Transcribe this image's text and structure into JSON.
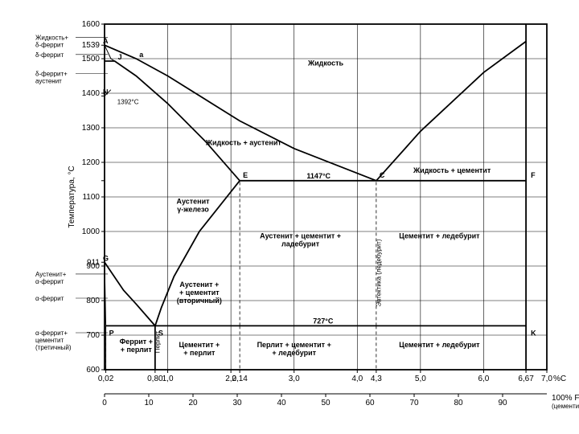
{
  "type": "phase-diagram",
  "background_color": "#ffffff",
  "stroke_color": "#000000",
  "grid_color": "#000000",
  "axis": {
    "x": {
      "label_upper_unit": "%С",
      "label_lower_unit": "100% Fe₃C\n(цементит)",
      "range_c": [
        0,
        7.0
      ],
      "range_fe3c": [
        0,
        100
      ],
      "ticks_c": [
        0.02,
        0.8,
        1.0,
        2.0,
        2.14,
        3.0,
        4.0,
        4.3,
        5.0,
        6.0,
        6.67,
        7.0
      ],
      "ticklabels_c": [
        "0,02",
        "0,80",
        "1,0",
        "2,0",
        "2,14",
        "3,0",
        "4,0",
        "4,3",
        "5,0",
        "6,0",
        "6,67",
        "7,0"
      ],
      "ticks_fe3c": [
        0,
        10,
        20,
        30,
        40,
        50,
        60,
        70,
        80,
        90
      ],
      "label_fontsize": 10
    },
    "y": {
      "label": "Температура, °С",
      "range": [
        600,
        1600
      ],
      "ticks": [
        600,
        700,
        800,
        900,
        911,
        1000,
        1100,
        1147,
        1200,
        1300,
        1392,
        1400,
        1500,
        1539,
        1600
      ],
      "ticklabels": [
        "600",
        "700",
        "800",
        "900",
        "911",
        "1000",
        "1100",
        "",
        "1200",
        "1300",
        "",
        "1400",
        "1500",
        "1539",
        "1600"
      ],
      "label_fontsize": 10
    }
  },
  "critical_points": {
    "A": {
      "c": 0.0,
      "t": 1539
    },
    "J": {
      "c": 0.16,
      "t": 1493
    },
    "a": {
      "c": 0.5,
      "t": 1500
    },
    "N": {
      "c": 0.0,
      "t": 1392
    },
    "E": {
      "c": 2.14,
      "t": 1147
    },
    "C": {
      "c": 4.3,
      "t": 1147
    },
    "F": {
      "c": 6.67,
      "t": 1147
    },
    "G": {
      "c": 0.0,
      "t": 911
    },
    "P": {
      "c": 0.02,
      "t": 727
    },
    "S": {
      "c": 0.8,
      "t": 727
    },
    "K": {
      "c": 6.67,
      "t": 727
    }
  },
  "curves": {
    "liquidus1": [
      [
        0,
        1539
      ],
      [
        0.5,
        1500
      ],
      [
        1.0,
        1450
      ],
      [
        2.14,
        1320
      ],
      [
        3.0,
        1240
      ],
      [
        4.3,
        1147
      ]
    ],
    "liquidus2": [
      [
        4.3,
        1147
      ],
      [
        5.0,
        1290
      ],
      [
        6.0,
        1460
      ],
      [
        6.67,
        1550
      ]
    ],
    "solidus1": [
      [
        0,
        1493
      ],
      [
        0.16,
        1493
      ],
      [
        0.5,
        1450
      ],
      [
        1.0,
        1370
      ],
      [
        1.6,
        1260
      ],
      [
        2.14,
        1147
      ]
    ],
    "gs": [
      [
        0,
        911
      ],
      [
        0.3,
        830
      ],
      [
        0.5,
        790
      ],
      [
        0.8,
        727
      ]
    ],
    "es": [
      [
        2.14,
        1147
      ],
      [
        1.5,
        1000
      ],
      [
        1.1,
        870
      ],
      [
        0.9,
        780
      ],
      [
        0.8,
        727
      ]
    ],
    "gp": [
      [
        0,
        911
      ],
      [
        0.01,
        820
      ],
      [
        0.02,
        727
      ]
    ]
  },
  "horizontals": {
    "ecf": {
      "t": 1147,
      "from_c": 2.14,
      "to_c": 6.67,
      "label": "1147°С"
    },
    "psk": {
      "t": 727,
      "from_c": 0.02,
      "to_c": 6.67,
      "label": "727°С"
    }
  },
  "verticals": {
    "cementite": {
      "c": 6.67
    },
    "eutectic": {
      "c": 4.3,
      "from_t": 727,
      "to_t": 1147
    },
    "e_line": {
      "c": 2.14,
      "from_t": 727,
      "to_t": 1147
    }
  },
  "region_labels": [
    {
      "text": "Жидкость",
      "c": 3.5,
      "t": 1480
    },
    {
      "text": "Жидкость + аустенит",
      "c": 2.2,
      "t": 1250
    },
    {
      "text": "Жидкость + цементит",
      "c": 5.5,
      "t": 1170
    },
    {
      "text": "Аустенит\nγ-железо",
      "c": 1.4,
      "t": 1080
    },
    {
      "text": "Аустенит + цементит +\nладебурит",
      "c": 3.1,
      "t": 980
    },
    {
      "text": "Цементит + ледебурит",
      "c": 5.3,
      "t": 980
    },
    {
      "text": "Аустенит +\n+ цементит\n(вторичный)",
      "c": 1.5,
      "t": 840
    },
    {
      "text": "Феррит +\n+ перлит",
      "c": 0.5,
      "t": 675
    },
    {
      "text": "Цементит +\n+ перлит",
      "c": 1.5,
      "t": 665
    },
    {
      "text": "Перлит + цементит +\n+ ледебурит",
      "c": 3.0,
      "t": 665
    },
    {
      "text": "Цементит + ледебурит",
      "c": 5.3,
      "t": 665
    }
  ],
  "rotated_labels": [
    {
      "text": "Перлит",
      "c": 0.87,
      "t": 680
    },
    {
      "text": "Эвтектика (ледебурит)",
      "c": 4.37,
      "t": 880
    }
  ],
  "left_annotations": [
    {
      "text": "Жидкость+\nδ-феррит",
      "t": 1555
    },
    {
      "text": "δ-феррит",
      "t": 1505
    },
    {
      "text": "δ-феррит+\nаустенит",
      "t": 1450
    },
    {
      "text": "Аустенит+\nα-феррит",
      "t": 870
    },
    {
      "text": "α-феррит",
      "t": 800
    },
    {
      "text": "α-феррит+\nцементит\n(третичный)",
      "t": 700
    }
  ],
  "line_width_main": 1.8,
  "line_width_grid": 0.6,
  "line_width_dash": 0.8,
  "tick_fontsize": 9
}
